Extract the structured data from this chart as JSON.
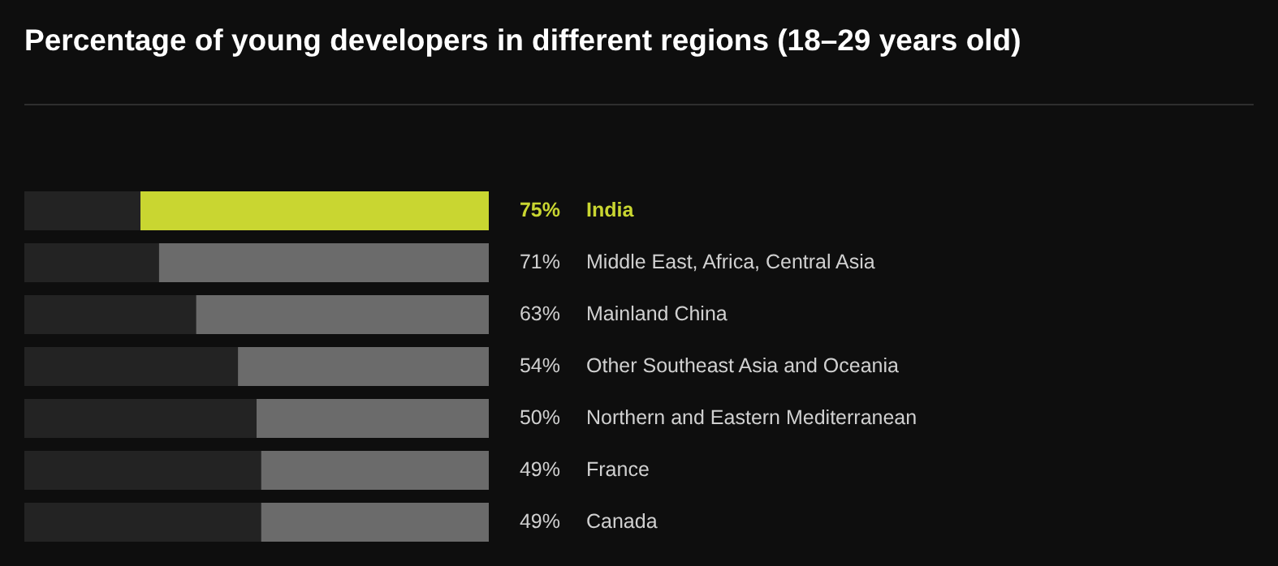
{
  "chart_data": {
    "type": "bar",
    "orientation": "horizontal",
    "title": "Percentage of young developers in different regions (18–29 years old)",
    "categories": [
      "India",
      "Middle East, Africa, Central Asia",
      "Mainland China",
      "Other Southeast Asia and Oceania",
      "Northern and Eastern Mediterranean",
      "France",
      "Canada"
    ],
    "values": [
      75,
      71,
      63,
      54,
      50,
      49,
      49
    ],
    "colors": [
      "#c9d631",
      "#6b6b6b",
      "#6b6b6b",
      "#6b6b6b",
      "#6b6b6b",
      "#6b6b6b",
      "#6b6b6b"
    ],
    "value_labels": [
      "75%",
      "71%",
      "63%",
      "54%",
      "50%",
      "49%",
      "49%"
    ],
    "xlim": [
      100,
      0
    ],
    "legend": false
  }
}
